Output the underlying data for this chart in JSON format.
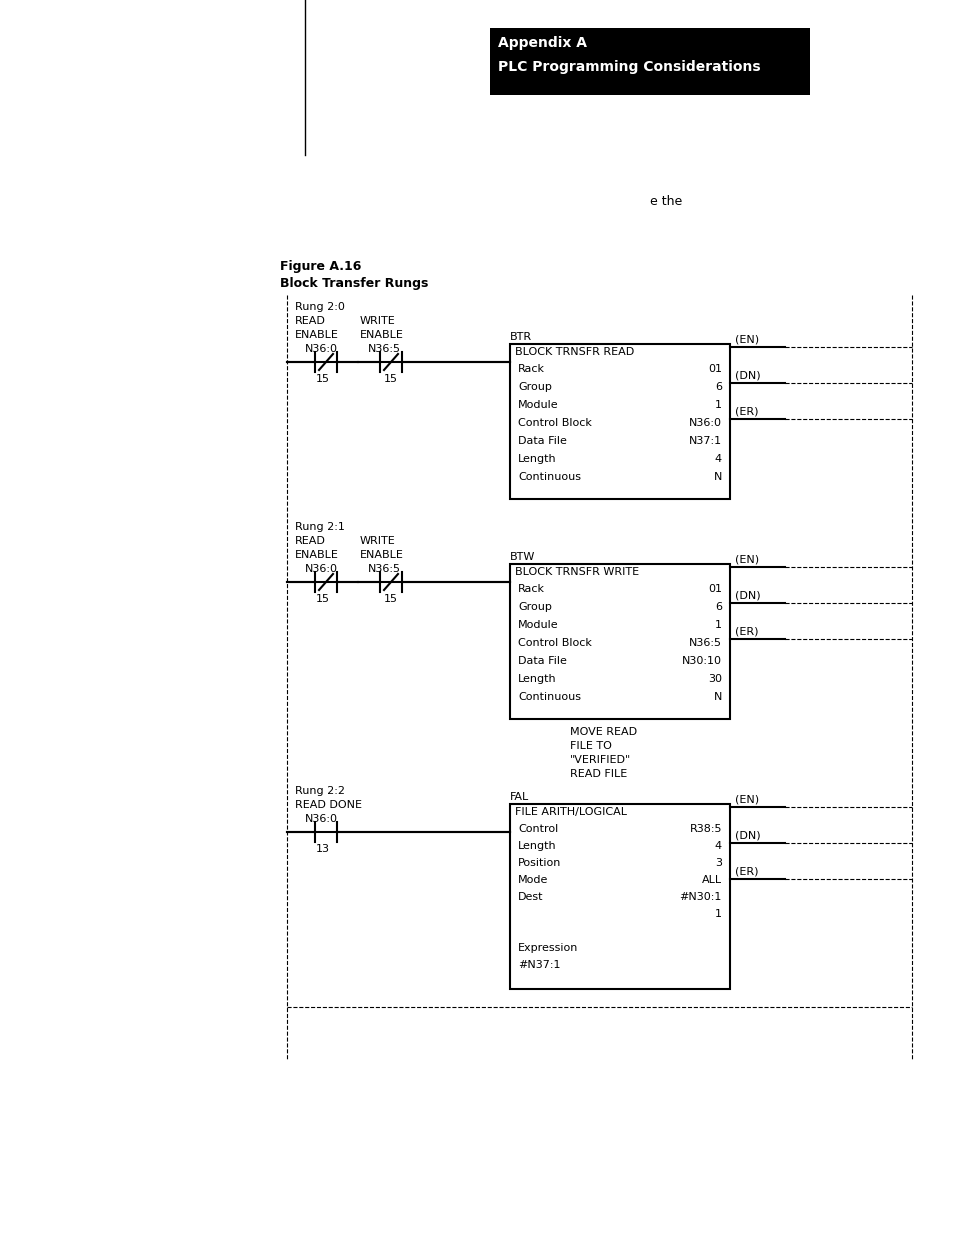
{
  "page_width": 9.54,
  "page_height": 12.35,
  "bg_color": "#ffffff",
  "header_bg": "#000000",
  "header_text_color": "#ffffff",
  "header_line1": "Appendix A",
  "header_line2": "PLC Programming Considerations",
  "figure_label_line1": "Figure A.16",
  "figure_label_line2": "Block Transfer Rungs",
  "note_text": "e the",
  "rung1_label": "Rung 2:0",
  "rung1_read": "READ",
  "rung1_write": "WRITE",
  "rung1_read_en": "ENABLE",
  "rung1_write_en": "ENABLE",
  "rung1_n360": "N36:0",
  "rung1_n365": "N36:5",
  "rung1_15a": "15",
  "rung1_15b": "15",
  "btr_title": "BTR",
  "btr_subtitle": "BLOCK TRNSFR READ",
  "btr_fields": [
    "Rack",
    "Group",
    "Module",
    "Control Block",
    "Data File",
    "Length",
    "Continuous"
  ],
  "btr_values": [
    "01",
    "6",
    "1",
    "N36:0",
    "N37:1",
    "4",
    "N"
  ],
  "btr_en": "(EN)",
  "btr_dn": "(DN)",
  "btr_er": "(ER)",
  "rung2_label": "Rung 2:1",
  "rung2_read": "READ",
  "rung2_write": "WRITE",
  "rung2_read_en": "ENABLE",
  "rung2_write_en": "ENABLE",
  "rung2_n360": "N36:0",
  "rung2_n365": "N36:5",
  "rung2_15a": "15",
  "rung2_15b": "15",
  "btw_title": "BTW",
  "btw_subtitle": "BLOCK TRNSFR WRITE",
  "btw_fields": [
    "Rack",
    "Group",
    "Module",
    "Control Block",
    "Data File",
    "Length",
    "Continuous"
  ],
  "btw_values": [
    "01",
    "6",
    "1",
    "N36:5",
    "N30:10",
    "30",
    "N"
  ],
  "btw_en": "(EN)",
  "btw_dn": "(DN)",
  "btw_er": "(ER)",
  "rung3_label": "Rung 2:2",
  "rung3_read_done": "READ DONE",
  "rung3_n360": "N36:0",
  "rung3_13": "13",
  "fal_title": "FAL",
  "fal_subtitle": "FILE ARITH/LOGICAL",
  "fal_en": "(EN)",
  "fal_dn": "(DN)",
  "fal_er": "(ER)"
}
